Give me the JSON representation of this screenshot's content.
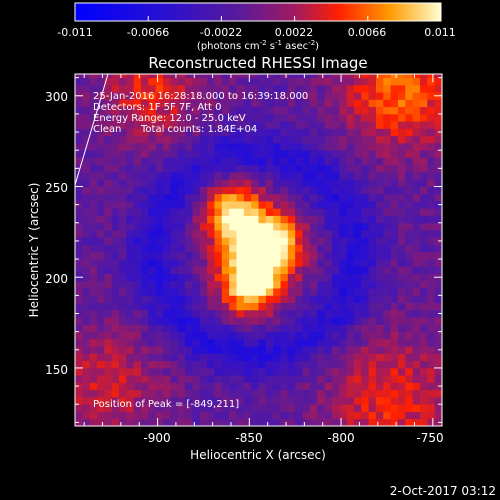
{
  "colorbar": {
    "ticks": [
      "-0.011",
      "-0.0066",
      "-0.0022",
      "0.0022",
      "0.0066",
      "0.011"
    ],
    "units_prefix": "(photons cm",
    "units_exp1": "-2",
    "units_mid": " s",
    "units_exp2": "-1",
    "units_mid2": " asec",
    "units_exp3": "-2",
    "units_suffix": ")"
  },
  "info": {
    "time": "25-Jan-2016 16:28:18.000 to 16:39:18.000",
    "detectors": "Detectors: 1F 5F 7F, Att 0",
    "energy": "Energy Range: 12.0 - 25.0 keV",
    "clean": "Clean",
    "counts": "Total counts: 1.84E+04",
    "peak": "Position of Peak = [-849,211]"
  },
  "footer": {
    "date": "2-Oct-2017 03:12"
  },
  "colors": {
    "low": "#0000ff",
    "mid": "#5a1a9a",
    "high": "#ff3000",
    "top": "#ffffc0"
  },
  "chart_data": {
    "type": "heatmap",
    "title": "Reconstructed RHESSI Image",
    "xlabel": "Heliocentric X (arcsec)",
    "ylabel": "Heliocentric Y (arcsec)",
    "xlim": [
      -945,
      -745
    ],
    "ylim": [
      118,
      312
    ],
    "x_ticks": [
      -900,
      -850,
      -800,
      -750
    ],
    "y_ticks": [
      150,
      200,
      250,
      300
    ],
    "x_tick_labels": [
      "-900",
      "-850",
      "-800",
      "-750"
    ],
    "y_tick_labels": [
      "150",
      "200",
      "250",
      "300"
    ],
    "peak": [
      -849,
      211
    ],
    "value_range": [
      -0.011,
      0.011
    ]
  }
}
